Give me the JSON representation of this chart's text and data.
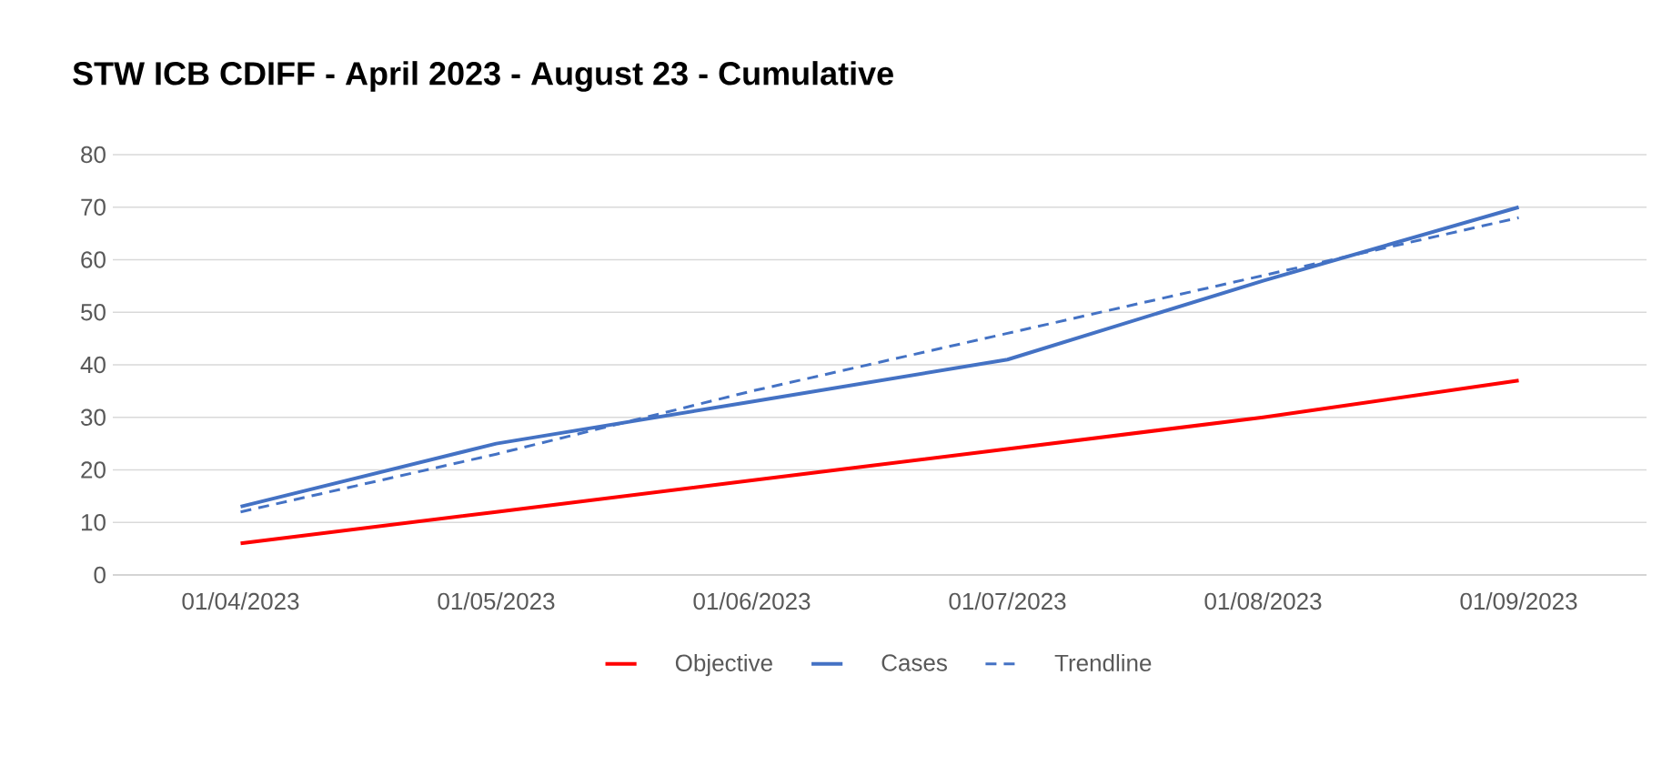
{
  "chart_data": {
    "type": "line",
    "title": "STW ICB CDIFF - April 2023 - August 23 - Cumulative",
    "categories": [
      "01/04/2023",
      "01/05/2023",
      "01/06/2023",
      "01/07/2023",
      "01/08/2023",
      "01/09/2023"
    ],
    "series": [
      {
        "name": "Objective",
        "color": "#ff0000",
        "values": [
          6,
          12,
          18,
          24,
          30,
          37
        ]
      },
      {
        "name": "Cases",
        "color": "#4472c4",
        "values": [
          13,
          25,
          33,
          41,
          56,
          70
        ]
      },
      {
        "name": "Trendline",
        "color": "#4472c4",
        "line_style": "dashed",
        "values": [
          12,
          23,
          35,
          46,
          57,
          68
        ]
      }
    ],
    "ylim": [
      0,
      80
    ],
    "yticks": [
      0,
      10,
      20,
      30,
      40,
      50,
      60,
      70,
      80
    ],
    "grid": "y",
    "legend": "bottom",
    "marker": "none",
    "line_style": "solid"
  }
}
